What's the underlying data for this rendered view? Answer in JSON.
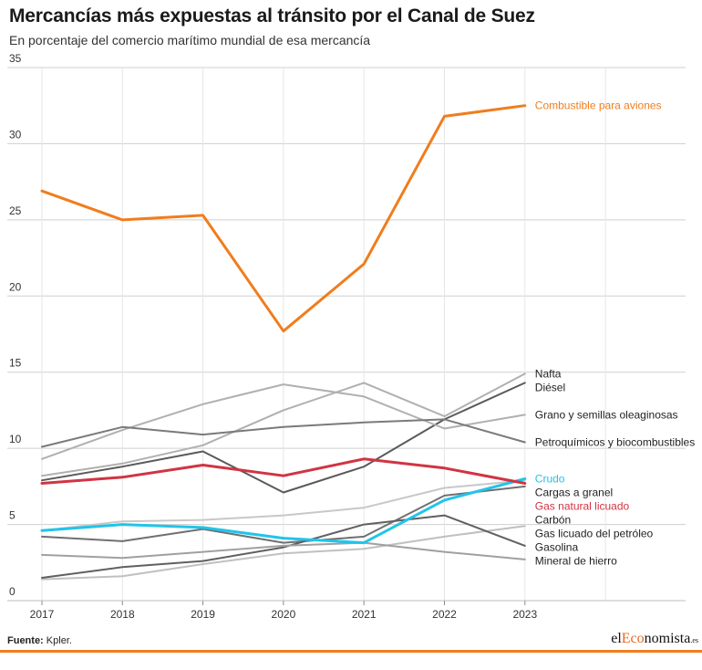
{
  "title": "Mercancías más expuestas al tránsito por el Canal de Suez",
  "subtitle": "En porcentaje del comercio marítimo mundial de esa mercancía",
  "source_label": "Fuente:",
  "source_text": "Kpler.",
  "logo": {
    "prefix": "el",
    "accent": "Eco",
    "rest": "nomista",
    "suffix": ".es"
  },
  "chart_data": {
    "type": "line",
    "x": [
      "2017",
      "2018",
      "2019",
      "2020",
      "2021",
      "2022",
      "2023"
    ],
    "ylim": [
      0,
      35
    ],
    "yticks": [
      "0",
      "5",
      "10",
      "15",
      "20",
      "25",
      "30",
      "35"
    ],
    "grid": true,
    "legend": "inline labels at right end of lines",
    "series": [
      {
        "name": "Combustible para aviones",
        "color": "#f07d1c",
        "width": 3,
        "label_bold": true,
        "values": [
          26.9,
          25.0,
          25.3,
          17.7,
          22.1,
          31.8,
          32.5
        ]
      },
      {
        "name": "Nafta",
        "color": "#b0b0b0",
        "width": 2,
        "label_bold": false,
        "values": [
          8.2,
          9.0,
          10.2,
          12.5,
          14.3,
          12.1,
          14.9
        ]
      },
      {
        "name": "Diésel",
        "color": "#5a5a5a",
        "width": 2,
        "label_bold": false,
        "values": [
          7.9,
          8.8,
          9.8,
          7.1,
          8.8,
          11.9,
          14.3
        ]
      },
      {
        "name": "Grano y semillas oleaginosas",
        "color": "#b0b0b0",
        "width": 2,
        "label_bold": false,
        "values": [
          9.3,
          11.2,
          12.9,
          14.2,
          13.4,
          11.3,
          12.2
        ]
      },
      {
        "name": "Petroquímicos y biocombustibles",
        "color": "#7a7a7a",
        "width": 2,
        "label_bold": false,
        "values": [
          10.1,
          11.4,
          10.9,
          11.4,
          11.7,
          11.9,
          10.4
        ]
      },
      {
        "name": "Cargas a granel",
        "color": "#c8c8c8",
        "width": 2,
        "label_bold": false,
        "values": [
          4.6,
          5.2,
          5.3,
          5.6,
          6.1,
          7.4,
          7.9
        ]
      },
      {
        "name": "Crudo",
        "color": "#22c4ea",
        "width": 3,
        "label_bold": true,
        "values": [
          4.6,
          5.0,
          4.8,
          4.1,
          3.8,
          6.6,
          8.0
        ]
      },
      {
        "name": "Gas natural licuado",
        "color": "#d13443",
        "width": 3,
        "label_bold": true,
        "values": [
          7.7,
          8.1,
          8.9,
          8.2,
          9.3,
          8.7,
          7.7
        ]
      },
      {
        "name": "Carbón",
        "color": "#707070",
        "width": 2,
        "label_bold": false,
        "values": [
          4.2,
          3.9,
          4.7,
          3.8,
          4.2,
          6.9,
          7.5
        ]
      },
      {
        "name": "Gas licuado del petróleo",
        "color": "#c0c0c0",
        "width": 2,
        "label_bold": false,
        "values": [
          1.4,
          1.6,
          2.4,
          3.1,
          3.4,
          4.2,
          4.9
        ]
      },
      {
        "name": "Gasolina",
        "color": "#606060",
        "width": 2,
        "label_bold": false,
        "values": [
          1.5,
          2.2,
          2.6,
          3.5,
          5.0,
          5.6,
          3.6
        ]
      },
      {
        "name": "Mineral de hierro",
        "color": "#a0a0a0",
        "width": 2,
        "label_bold": false,
        "values": [
          3.0,
          2.8,
          3.2,
          3.6,
          3.8,
          3.2,
          2.7
        ]
      }
    ]
  }
}
